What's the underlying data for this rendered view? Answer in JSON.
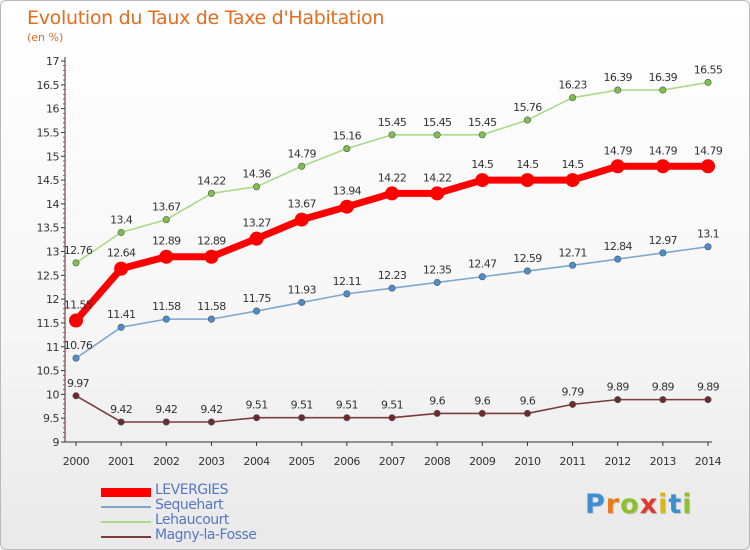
{
  "header": {
    "title": "Evolution du Taux de Taxe d'Habitation",
    "subtitle": "(en %)"
  },
  "logo": {
    "letters": [
      "P",
      "r",
      "o",
      "x",
      "i",
      "t",
      "i"
    ],
    "colors": [
      "#3d8fd1",
      "#e87a1d",
      "#8fbf2e",
      "#e03a2f",
      "#d6b81e",
      "#3d8fd1",
      "#8fbf2e"
    ]
  },
  "chart_data": {
    "type": "line",
    "title": "Evolution du Taux de Taxe d'Habitation",
    "subtitle": "(en %)",
    "x": [
      "2000",
      "2001",
      "2002",
      "2003",
      "2004",
      "2005",
      "2006",
      "2007",
      "2008",
      "2009",
      "2010",
      "2011",
      "2012",
      "2013",
      "2014"
    ],
    "ylim": [
      9,
      17
    ],
    "yticks": [
      "9",
      "9.5",
      "10",
      "10.5",
      "11",
      "11.5",
      "12",
      "12.5",
      "13",
      "13.5",
      "14",
      "14.5",
      "15",
      "15.5",
      "16",
      "16.5",
      "17"
    ],
    "grid": false,
    "legend_position": "bottom-left",
    "series": [
      {
        "name": "LEVERGIES",
        "color": "#ff0000",
        "marker_color": "#ff0000",
        "emphasis": true,
        "values": [
          11.55,
          12.64,
          12.89,
          12.89,
          13.27,
          13.67,
          13.94,
          14.22,
          14.22,
          14.5,
          14.5,
          14.5,
          14.79,
          14.79,
          14.79
        ],
        "labels": [
          "11.55",
          "12.64",
          "12.89",
          "12.89",
          "13.27",
          "13.67",
          "13.94",
          "14.22",
          "14.22",
          "14.5",
          "14.5",
          "14.5",
          "14.79",
          "14.79",
          "14.79"
        ]
      },
      {
        "name": "Sequehart",
        "color": "#7ea7cf",
        "marker_color": "#4a8ed0",
        "emphasis": false,
        "values": [
          10.76,
          11.41,
          11.58,
          11.58,
          11.75,
          11.93,
          12.11,
          12.23,
          12.35,
          12.47,
          12.59,
          12.71,
          12.84,
          12.97,
          13.1
        ],
        "labels": [
          "10.76",
          "11.41",
          "11.58",
          "11.58",
          "11.75",
          "11.93",
          "12.11",
          "12.23",
          "12.35",
          "12.47",
          "12.59",
          "12.71",
          "12.84",
          "12.97",
          "13.1"
        ]
      },
      {
        "name": "Lehaucourt",
        "color": "#a8db8a",
        "marker_color": "#7cc14c",
        "emphasis": false,
        "values": [
          12.76,
          13.4,
          13.67,
          14.22,
          14.36,
          14.79,
          15.16,
          15.45,
          15.45,
          15.45,
          15.76,
          16.23,
          16.39,
          16.39,
          16.55
        ],
        "labels": [
          "12.76",
          "13.4",
          "13.67",
          "14.22",
          "14.36",
          "14.79",
          "15.16",
          "15.45",
          "15.45",
          "15.45",
          "15.76",
          "16.23",
          "16.39",
          "16.39",
          "16.55"
        ]
      },
      {
        "name": "Magny-la-Fosse",
        "color": "#7a3b3b",
        "marker_color": "#6e2a2a",
        "emphasis": false,
        "values": [
          9.97,
          9.42,
          9.42,
          9.42,
          9.51,
          9.51,
          9.51,
          9.51,
          9.6,
          9.6,
          9.6,
          9.79,
          9.89,
          9.89,
          9.89
        ],
        "labels": [
          "9.97",
          "9.42",
          "9.42",
          "9.42",
          "9.51",
          "9.51",
          "9.51",
          "9.51",
          "9.6",
          "9.6",
          "9.6",
          "9.79",
          "9.89",
          "9.89",
          "9.89"
        ]
      }
    ]
  }
}
